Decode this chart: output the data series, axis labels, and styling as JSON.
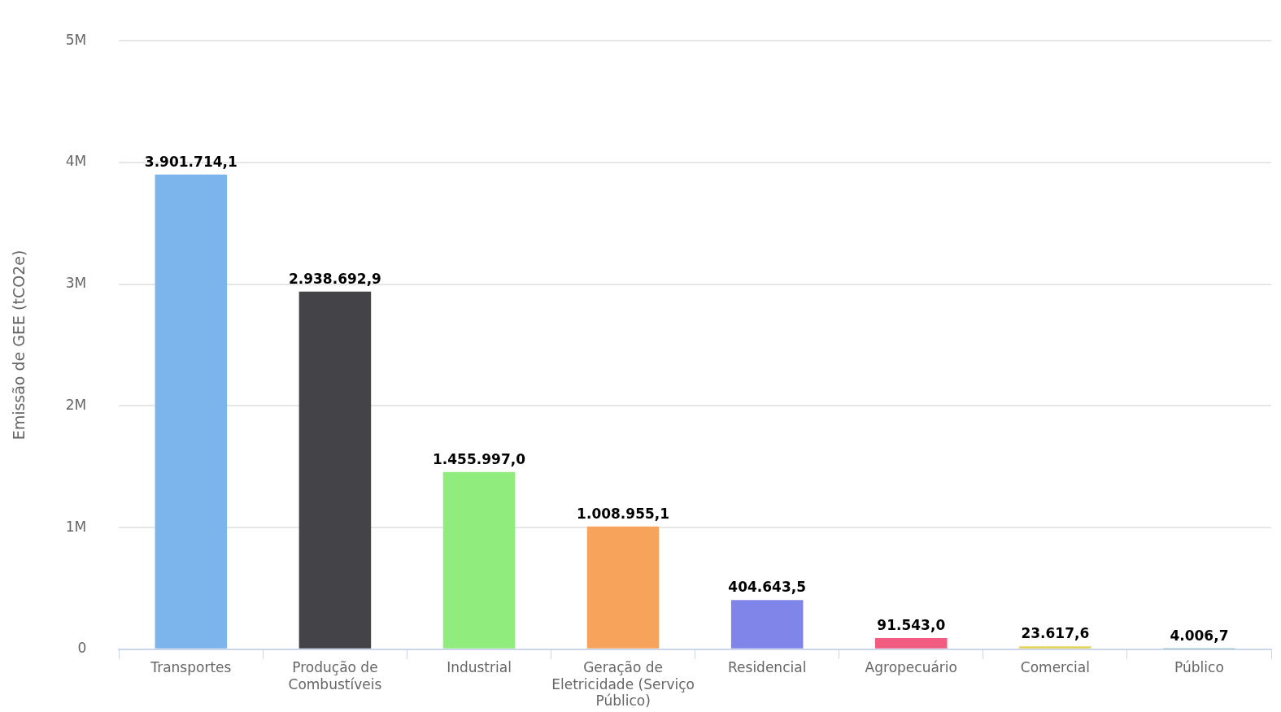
{
  "chart_data": {
    "type": "bar",
    "ylabel": "Emissão de GEE (tCO2e)",
    "categories": [
      "Transportes",
      "Produção de Combustíveis",
      "Industrial",
      "Geração de Eletricidade (Serviço Público)",
      "Residencial",
      "Agropecuário",
      "Comercial",
      "Público"
    ],
    "values": [
      3901714.1,
      2938692.9,
      1455997.0,
      1008955.1,
      404643.5,
      91543.0,
      23617.6,
      4006.7
    ],
    "colors": [
      "#7cb5ec",
      "#434348",
      "#90ed7d",
      "#f7a35c",
      "#8085e9",
      "#f15c80",
      "#e4d354",
      "#2b908f"
    ],
    "value_labels": [
      "3.901.714,1",
      "2.938.692,9",
      "1.455.997,0",
      "1.008.955,1",
      "404.643,5",
      "91.543,0",
      "23.617,6",
      "4.006,7"
    ],
    "ylim": [
      0,
      5000000
    ],
    "yticks": [
      {
        "value": 0,
        "label": "0"
      },
      {
        "value": 1000000,
        "label": "1M"
      },
      {
        "value": 2000000,
        "label": "2M"
      },
      {
        "value": 3000000,
        "label": "3M"
      },
      {
        "value": 4000000,
        "label": "4M"
      },
      {
        "value": 5000000,
        "label": "5M"
      }
    ],
    "grid": "y",
    "legend": false
  }
}
